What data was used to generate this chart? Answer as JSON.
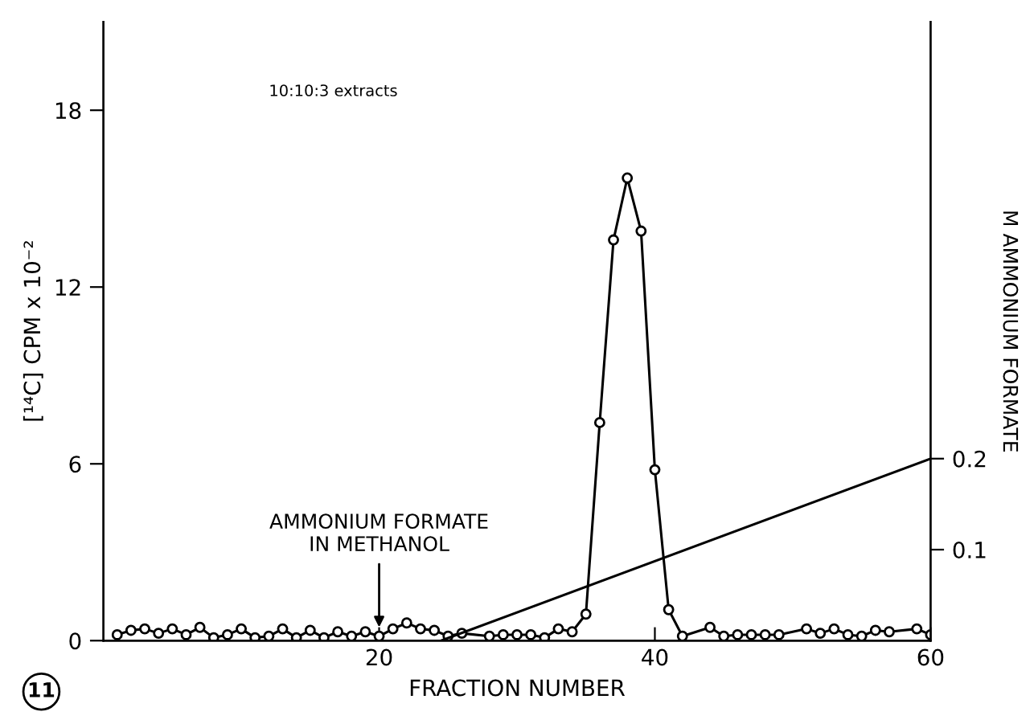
{
  "chart_data": {
    "type": "line",
    "xlabel": "FRACTION NUMBER",
    "ylabel": "[¹⁴C] CPM x 10⁻²",
    "y2label": "M AMMONIUM FORMATE",
    "xlim": [
      0,
      60
    ],
    "xticks": [
      20,
      40,
      60
    ],
    "ylim": [
      0,
      21
    ],
    "yticks": [
      0,
      6,
      12,
      18
    ],
    "y2lim": [
      0,
      0.68
    ],
    "y2ticks": [
      0.1,
      0.2
    ],
    "grid": false,
    "legend": false,
    "series": [
      {
        "marker": "circle",
        "color": "#000000",
        "x": [
          1,
          2,
          3,
          4,
          5,
          6,
          7,
          8,
          9,
          10,
          11,
          12,
          13,
          14,
          15,
          16,
          17,
          18,
          19,
          20,
          21,
          22,
          23,
          24,
          25,
          26,
          28,
          29,
          30,
          31,
          32,
          33,
          34,
          35,
          36,
          37,
          38,
          39,
          40,
          41,
          42,
          44,
          45,
          46,
          47,
          48,
          49,
          51,
          52,
          53,
          54,
          55,
          56,
          57,
          59,
          60
        ],
        "values": [
          0.2,
          0.35,
          0.4,
          0.25,
          0.4,
          0.2,
          0.45,
          0.1,
          0.2,
          0.4,
          0.1,
          0.15,
          0.4,
          0.1,
          0.35,
          0.1,
          0.3,
          0.15,
          0.3,
          0.15,
          0.4,
          0.6,
          0.4,
          0.35,
          0.15,
          0.25,
          0.15,
          0.2,
          0.2,
          0.2,
          0.1,
          0.4,
          0.3,
          0.9,
          7.4,
          13.6,
          15.7,
          13.9,
          5.8,
          1.05,
          0.15,
          0.45,
          0.15,
          0.2,
          0.2,
          0.2,
          0.2,
          0.4,
          0.25,
          0.4,
          0.2,
          0.15,
          0.35,
          0.3,
          0.4,
          0.2
        ]
      },
      {
        "marker": "none",
        "axis": "y2",
        "color": "#000000",
        "x": [
          24.5,
          60
        ],
        "values": [
          0,
          0.2
        ]
      }
    ],
    "annotations": [
      "10:10:3 extracts",
      "11",
      {
        "text": "AMMONIUM FORMATE\nIN METHANOL",
        "x": 20,
        "y": 0.3
      }
    ]
  }
}
